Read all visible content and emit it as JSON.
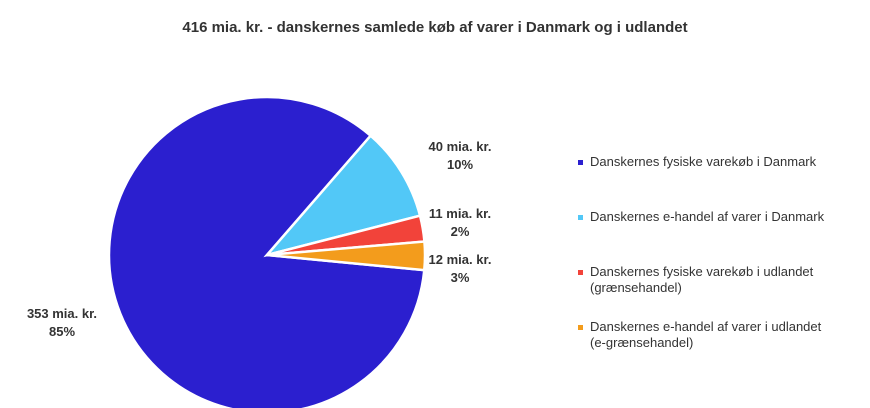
{
  "chart_data": {
    "type": "pie",
    "title": "416 mia. kr. - danskernes samlede køb af varer i Danmark og i udlandet",
    "categories": [
      "Danskernes fysiske varekøb i Danmark",
      "Danskernes e-handel af varer i Danmark",
      "Danskernes fysiske varekøb i udlandet (grænsehandel)",
      "Danskernes e-handel af varer i udlandet (e-grænsehandel)"
    ],
    "values": [
      353,
      40,
      11,
      12
    ],
    "value_labels": [
      "353 mia. kr.",
      "40 mia. kr.",
      "11 mia. kr.",
      "12 mia. kr."
    ],
    "percent_labels": [
      "85%",
      "10%",
      "2%",
      "3%"
    ],
    "colors": [
      "#2b1fcf",
      "#52c8f7",
      "#f2433a",
      "#f39c1c"
    ],
    "legend": "right"
  }
}
